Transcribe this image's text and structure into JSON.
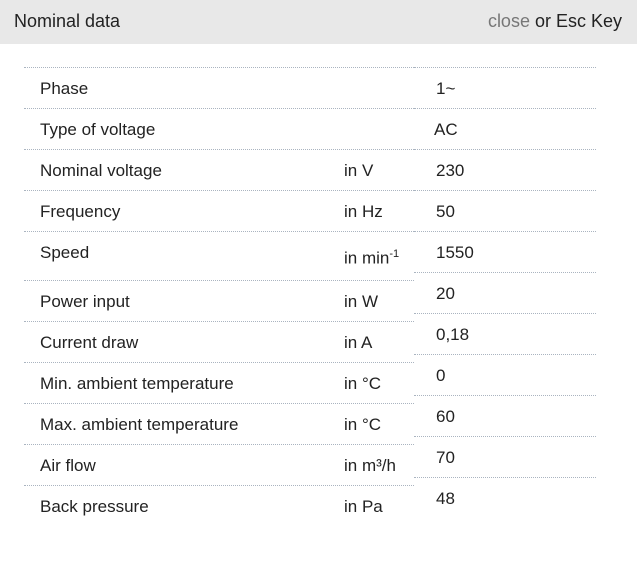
{
  "header": {
    "title": "Nominal data",
    "close_link": "close",
    "close_suffix": " or Esc Key"
  },
  "rows": [
    {
      "label": "Phase",
      "unit": "",
      "value": "1~"
    },
    {
      "label": "Type of voltage",
      "unit": "",
      "value": "AC"
    },
    {
      "label": "Nominal voltage",
      "unit": "in V",
      "value": "230"
    },
    {
      "label": "Frequency",
      "unit": "in Hz",
      "value": "50"
    },
    {
      "label": "Speed",
      "unit": "in min",
      "unit_sup": "-1",
      "value": "1550"
    },
    {
      "label": "Power input",
      "unit": "in W",
      "value": "20"
    },
    {
      "label": "Current draw",
      "unit": "in A",
      "value": "0,18"
    },
    {
      "label": "Min. ambient temperature",
      "unit": "in °C",
      "value": "0"
    },
    {
      "label": "Max. ambient temperature",
      "unit": "in °C",
      "value": "60"
    },
    {
      "label": "Air flow",
      "unit": "in m³/h",
      "value": "70"
    },
    {
      "label": "Back pressure",
      "unit": "in Pa",
      "value": "48"
    }
  ]
}
